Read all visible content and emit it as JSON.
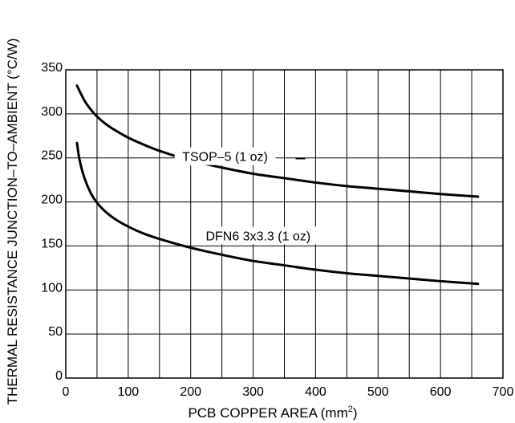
{
  "chart_data": {
    "type": "line",
    "title": "",
    "xlabel_main": "PCB COPPER AREA (mm",
    "xlabel_sup": "2",
    "xlabel_close": ")",
    "ylabel": "THERMAL RESISTANCE JUNCTION–TO–AMBIENT (°C/W)",
    "xlim": [
      0,
      700
    ],
    "ylim": [
      0,
      350
    ],
    "grid": true,
    "x_ticks": [
      0,
      100,
      200,
      300,
      400,
      500,
      600,
      700
    ],
    "y_ticks": [
      0,
      50,
      100,
      150,
      200,
      250,
      300,
      350
    ],
    "series": [
      {
        "name": "TSOP–5 (1 oz)",
        "x": [
          18,
          30,
          40,
          50,
          65,
          80,
          100,
          125,
          150,
          200,
          250,
          300,
          350,
          400,
          450,
          500,
          550,
          600,
          660
        ],
        "y": [
          332,
          315,
          305,
          297,
          288,
          281,
          273,
          265,
          258,
          247,
          239,
          232,
          227,
          222,
          218,
          215,
          212,
          209,
          206
        ]
      },
      {
        "name": "DFN6 3x3.3 (1 oz)",
        "x": [
          18,
          22,
          30,
          40,
          50,
          65,
          80,
          100,
          125,
          150,
          200,
          250,
          300,
          350,
          400,
          450,
          500,
          550,
          600,
          660
        ],
        "y": [
          267,
          248,
          227,
          210,
          199,
          188,
          180,
          172,
          164,
          158,
          148,
          140,
          133,
          128,
          123,
          119,
          116,
          113,
          110,
          107
        ]
      }
    ]
  }
}
